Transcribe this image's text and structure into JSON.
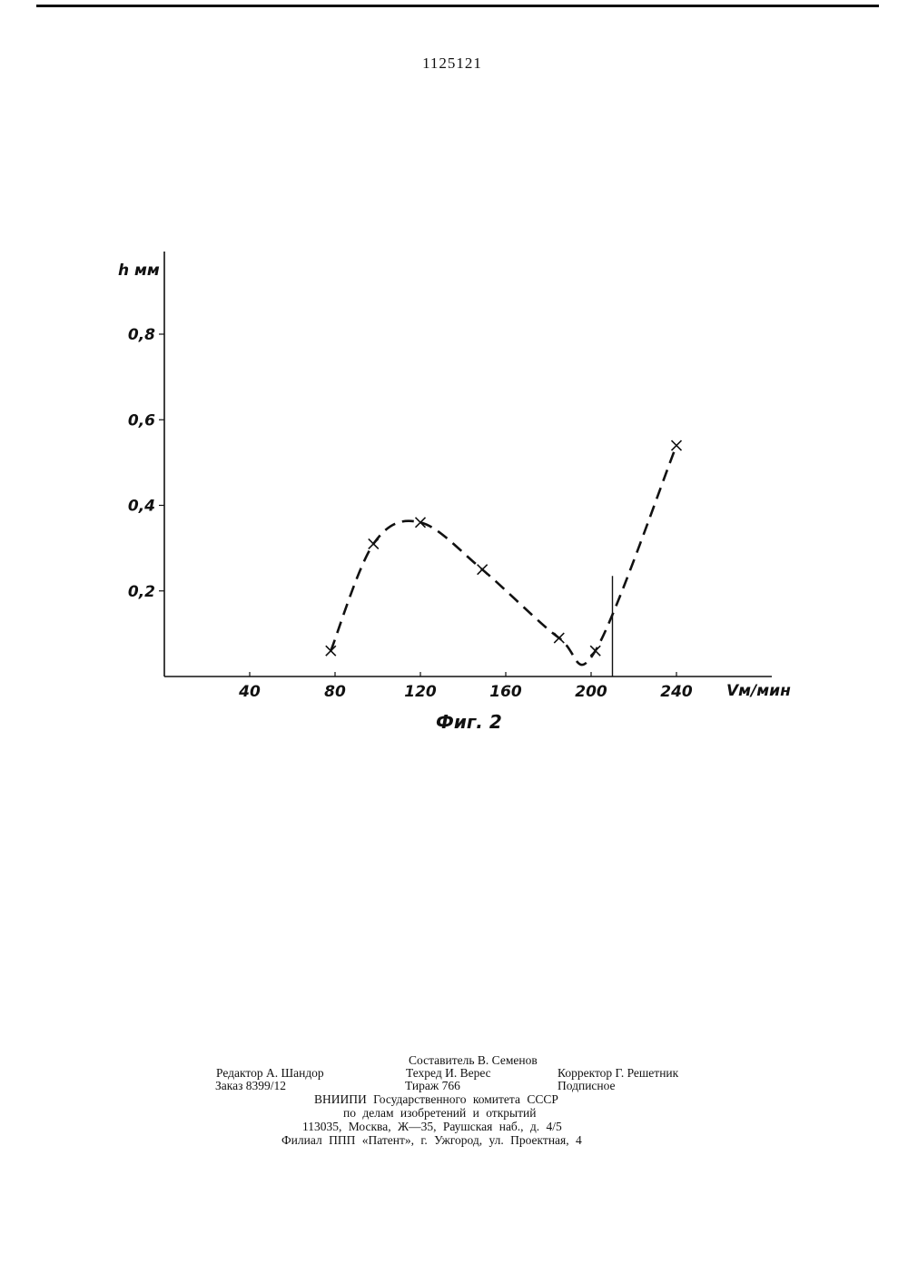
{
  "document": {
    "patent_number": "1125121",
    "figure_caption": "Фиг. 2"
  },
  "chart_data": {
    "type": "line",
    "title": "",
    "xlabel": "Vм/мин",
    "ylabel": "h мм",
    "xlim": [
      0,
      260
    ],
    "ylim": [
      0,
      1.0
    ],
    "x_ticks": [
      40,
      80,
      120,
      160,
      200,
      240
    ],
    "x_tick_labels": [
      "40",
      "80",
      "120",
      "160",
      "200",
      "240"
    ],
    "y_ticks": [
      0.2,
      0.4,
      0.6,
      0.8
    ],
    "y_tick_labels": [
      "0,2",
      "0,4",
      "0,6",
      "0,8"
    ],
    "grid": false,
    "line_style": "dashed",
    "series": [
      {
        "x": [
          78,
          98,
          120,
          149,
          185,
          202,
          240
        ],
        "values": [
          0.06,
          0.31,
          0.36,
          0.25,
          0.09,
          0.06,
          0.54
        ]
      }
    ],
    "vertical_reference_x": 210
  },
  "footer": {
    "compiler": "Составитель В. Семенов",
    "editor": "Редактор А. Шандор",
    "techred": "Техред И. Верес",
    "corrector": "Корректор Г. Решетник",
    "order": "Заказ 8399/12",
    "circulation": "Тираж 766",
    "subscription": "Подписное",
    "org": "ВНИИПИ Государственного комитета СССР",
    "org_sub": "по делам изобретений и открытий",
    "address": "113035, Москва, Ж—35, Раушская наб., д. 4/5",
    "branch": "Филиал ППП «Патент», г. Ужгород, ул. Проектная, 4"
  }
}
